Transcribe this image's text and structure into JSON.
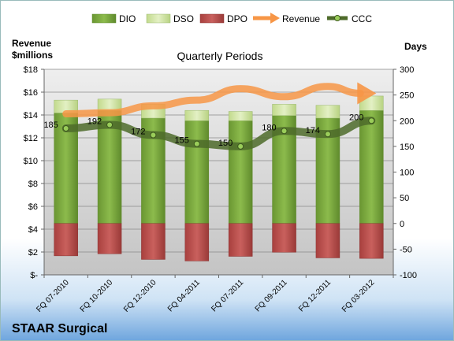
{
  "company": "STAAR Surgical",
  "chart_data": {
    "type": "bar",
    "title": "Quarterly Periods",
    "categories": [
      "FQ 07-2010",
      "FQ 10-2010",
      "FQ 12-2010",
      "FQ 04-2011",
      "FQ 07-2011",
      "FQ 09-2011",
      "FQ 12-2011",
      "FQ 03-2012"
    ],
    "left_axis": {
      "label": "Revenue\n$millions",
      "min": 0,
      "max": 18,
      "ticks": [
        "$-",
        "$2",
        "$4",
        "$6",
        "$8",
        "$10",
        "$12",
        "$14",
        "$16",
        "$18"
      ]
    },
    "right_axis": {
      "label": "Days",
      "min": -100,
      "max": 300,
      "ticks": [
        "-100",
        "-50",
        "0",
        "50",
        "100",
        "150",
        "200",
        "250",
        "300"
      ]
    },
    "legend_position": "top",
    "series": [
      {
        "name": "DIO",
        "axis": "right",
        "kind": "stacked-bar",
        "color": "#7aa63c",
        "values": [
          215,
          220,
          205,
          200,
          200,
          210,
          205,
          220
        ]
      },
      {
        "name": "DSO",
        "axis": "right",
        "kind": "stacked-bar",
        "color": "#d3e6a6",
        "values": [
          25,
          22,
          27,
          20,
          18,
          22,
          25,
          28
        ]
      },
      {
        "name": "DPO",
        "axis": "right",
        "kind": "negative-bar",
        "color": "#c0504d",
        "values": [
          -63,
          -59,
          -70,
          -73,
          -64,
          -56,
          -67,
          -68
        ]
      },
      {
        "name": "Revenue",
        "axis": "left",
        "kind": "line",
        "color": "#f79646",
        "values": [
          14.1,
          14.2,
          14.8,
          15.3,
          16.3,
          15.6,
          16.5,
          15.9
        ]
      },
      {
        "name": "CCC",
        "axis": "right",
        "kind": "line",
        "color": "#4e6b2a",
        "values": [
          185,
          192,
          172,
          155,
          150,
          180,
          174,
          200
        ]
      }
    ],
    "data_labels": [
      "185",
      "192",
      "172",
      "155",
      "150",
      "180",
      "174",
      "200"
    ]
  }
}
